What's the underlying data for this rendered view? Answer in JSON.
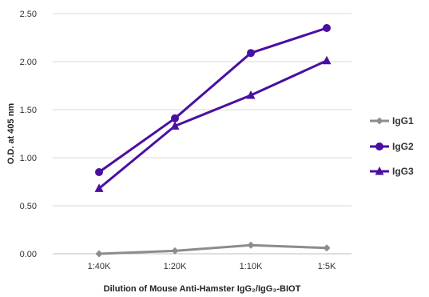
{
  "chart_data": {
    "type": "line",
    "xlabel": "Dilution of Mouse Anti-Hamster IgG₂/IgG₃-BIOT",
    "ylabel": "O.D. at 405 nm",
    "categories": [
      "1:40K",
      "1:20K",
      "1:10K",
      "1:5K"
    ],
    "ylim": [
      0,
      2.5
    ],
    "yticks": [
      "0.00",
      "0.50",
      "1.00",
      "1.50",
      "2.00",
      "2.50"
    ],
    "grid": "horizontal",
    "legend_position": "right",
    "series": [
      {
        "name": "IgG1",
        "values": [
          0.0,
          0.03,
          0.09,
          0.06
        ],
        "color": "#8c8c8c",
        "marker": "diamond"
      },
      {
        "name": "IgG2",
        "values": [
          0.85,
          1.41,
          2.09,
          2.35
        ],
        "color": "#4b0fa0",
        "marker": "circle"
      },
      {
        "name": "IgG3",
        "values": [
          0.68,
          1.33,
          1.65,
          2.01
        ],
        "color": "#4b0fa0",
        "marker": "triangle"
      }
    ]
  }
}
